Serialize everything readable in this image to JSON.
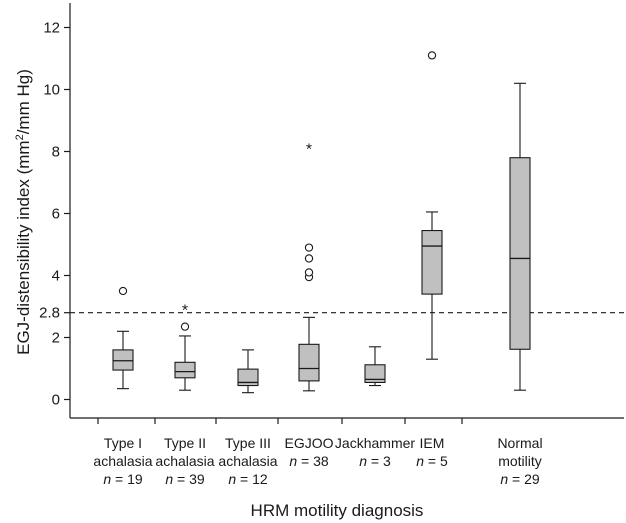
{
  "chart_data": {
    "type": "boxplot",
    "title": "",
    "xlabel": "HRM motility diagnosis",
    "ylabel": {
      "main": "EGJ-distensibility index (mm",
      "sup": "2",
      "tail": "/mm Hg)"
    },
    "ylim": [
      -0.9,
      12.6
    ],
    "yticks": [
      "0",
      "2",
      "2.8",
      "4",
      "6",
      "8",
      "10",
      "12"
    ],
    "ytick_values": [
      0,
      2,
      2.8,
      4,
      6,
      8,
      10,
      12
    ],
    "reference_line": {
      "y": 2.8,
      "style": "dashed"
    },
    "grid": false,
    "box_color": "#c0c0c0",
    "categories": [
      {
        "line1": "Type I",
        "line2": "achalasia",
        "n_label": "n",
        "n_value": "= 19",
        "whisker_low": 0.35,
        "q1": 0.95,
        "median": 1.25,
        "q3": 1.6,
        "whisker_high": 2.2,
        "outliers": [
          {
            "y": 3.5,
            "marker": "circle"
          }
        ]
      },
      {
        "line1": "Type II",
        "line2": "achalasia",
        "n_label": "n",
        "n_value": "= 39",
        "whisker_low": 0.3,
        "q1": 0.7,
        "median": 0.9,
        "q3": 1.2,
        "whisker_high": 2.05,
        "outliers": [
          {
            "y": 2.35,
            "marker": "circle"
          },
          {
            "y": 3.0,
            "marker": "star"
          }
        ]
      },
      {
        "line1": "Type III",
        "line2": "achalasia",
        "n_label": "n",
        "n_value": "= 12",
        "whisker_low": 0.22,
        "q1": 0.45,
        "median": 0.55,
        "q3": 0.98,
        "whisker_high": 1.6,
        "outliers": []
      },
      {
        "line1": "EGJOO",
        "line2": "",
        "n_label": "n",
        "n_value": "= 38",
        "whisker_low": 0.28,
        "q1": 0.6,
        "median": 1.0,
        "q3": 1.78,
        "whisker_high": 2.65,
        "outliers": [
          {
            "y": 3.95,
            "marker": "circle"
          },
          {
            "y": 4.1,
            "marker": "circle"
          },
          {
            "y": 4.55,
            "marker": "circle"
          },
          {
            "y": 4.9,
            "marker": "circle"
          },
          {
            "y": 8.2,
            "marker": "star"
          }
        ]
      },
      {
        "line1": "Jackhammer",
        "line2": "",
        "n_label": "n",
        "n_value": "= 3",
        "whisker_low": 0.45,
        "q1": 0.55,
        "median": 0.65,
        "q3": 1.12,
        "whisker_high": 1.7,
        "outliers": []
      },
      {
        "line1": "IEM",
        "line2": "",
        "n_label": "n",
        "n_value": "= 5",
        "whisker_low": 1.3,
        "q1": 3.4,
        "median": 4.95,
        "q3": 5.45,
        "whisker_high": 6.05,
        "outliers": [
          {
            "y": 11.1,
            "marker": "circle"
          }
        ]
      },
      {
        "line1": "Normal",
        "line2": "motility",
        "n_label": "n",
        "n_value": "= 29",
        "whisker_low": 0.3,
        "q1": 1.62,
        "median": 4.55,
        "q3": 7.8,
        "whisker_high": 10.2,
        "outliers": []
      }
    ]
  }
}
